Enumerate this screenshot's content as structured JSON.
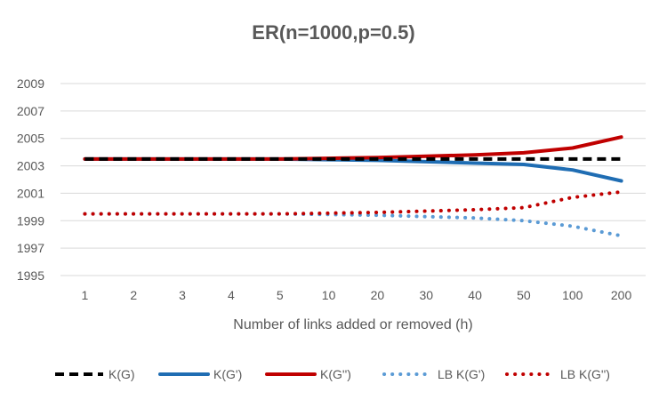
{
  "chart_data": {
    "type": "line",
    "title": "ER(n=1000,p=0.5)",
    "xlabel": "Number of links added or removed (h)",
    "ylabel": "",
    "categories": [
      "1",
      "2",
      "3",
      "4",
      "5",
      "10",
      "20",
      "30",
      "40",
      "50",
      "100",
      "200"
    ],
    "ylim": [
      1995,
      2009
    ],
    "yticks": [
      1995,
      1997,
      1999,
      2001,
      2003,
      2005,
      2007,
      2009
    ],
    "grid": "horizontal",
    "legend": "bottom",
    "series": [
      {
        "name": "K(G)",
        "color": "#000000",
        "style": "dashed",
        "values": [
          2003.5,
          2003.5,
          2003.5,
          2003.5,
          2003.5,
          2003.5,
          2003.5,
          2003.5,
          2003.5,
          2003.5,
          2003.5,
          2003.5
        ]
      },
      {
        "name": "K(G')",
        "color": "#1f6db3",
        "style": "solid",
        "values": [
          2003.5,
          2003.5,
          2003.5,
          2003.5,
          2003.5,
          2003.45,
          2003.4,
          2003.3,
          2003.2,
          2003.1,
          2002.7,
          2001.9
        ]
      },
      {
        "name": "K(G'')",
        "color": "#c00000",
        "style": "solid",
        "values": [
          2003.5,
          2003.5,
          2003.5,
          2003.5,
          2003.5,
          2003.55,
          2003.6,
          2003.7,
          2003.8,
          2003.95,
          2004.3,
          2005.1
        ]
      },
      {
        "name": "LB K(G')",
        "color": "#5b9bd5",
        "style": "dotted",
        "values": [
          1999.5,
          1999.5,
          1999.5,
          1999.5,
          1999.5,
          1999.45,
          1999.4,
          1999.3,
          1999.2,
          1999.0,
          1998.6,
          1997.9
        ]
      },
      {
        "name": "LB K(G'')",
        "color": "#c00000",
        "style": "dotted",
        "values": [
          1999.5,
          1999.5,
          1999.5,
          1999.5,
          1999.5,
          1999.55,
          1999.6,
          1999.7,
          1999.8,
          1999.95,
          2000.7,
          2001.1
        ]
      }
    ]
  }
}
